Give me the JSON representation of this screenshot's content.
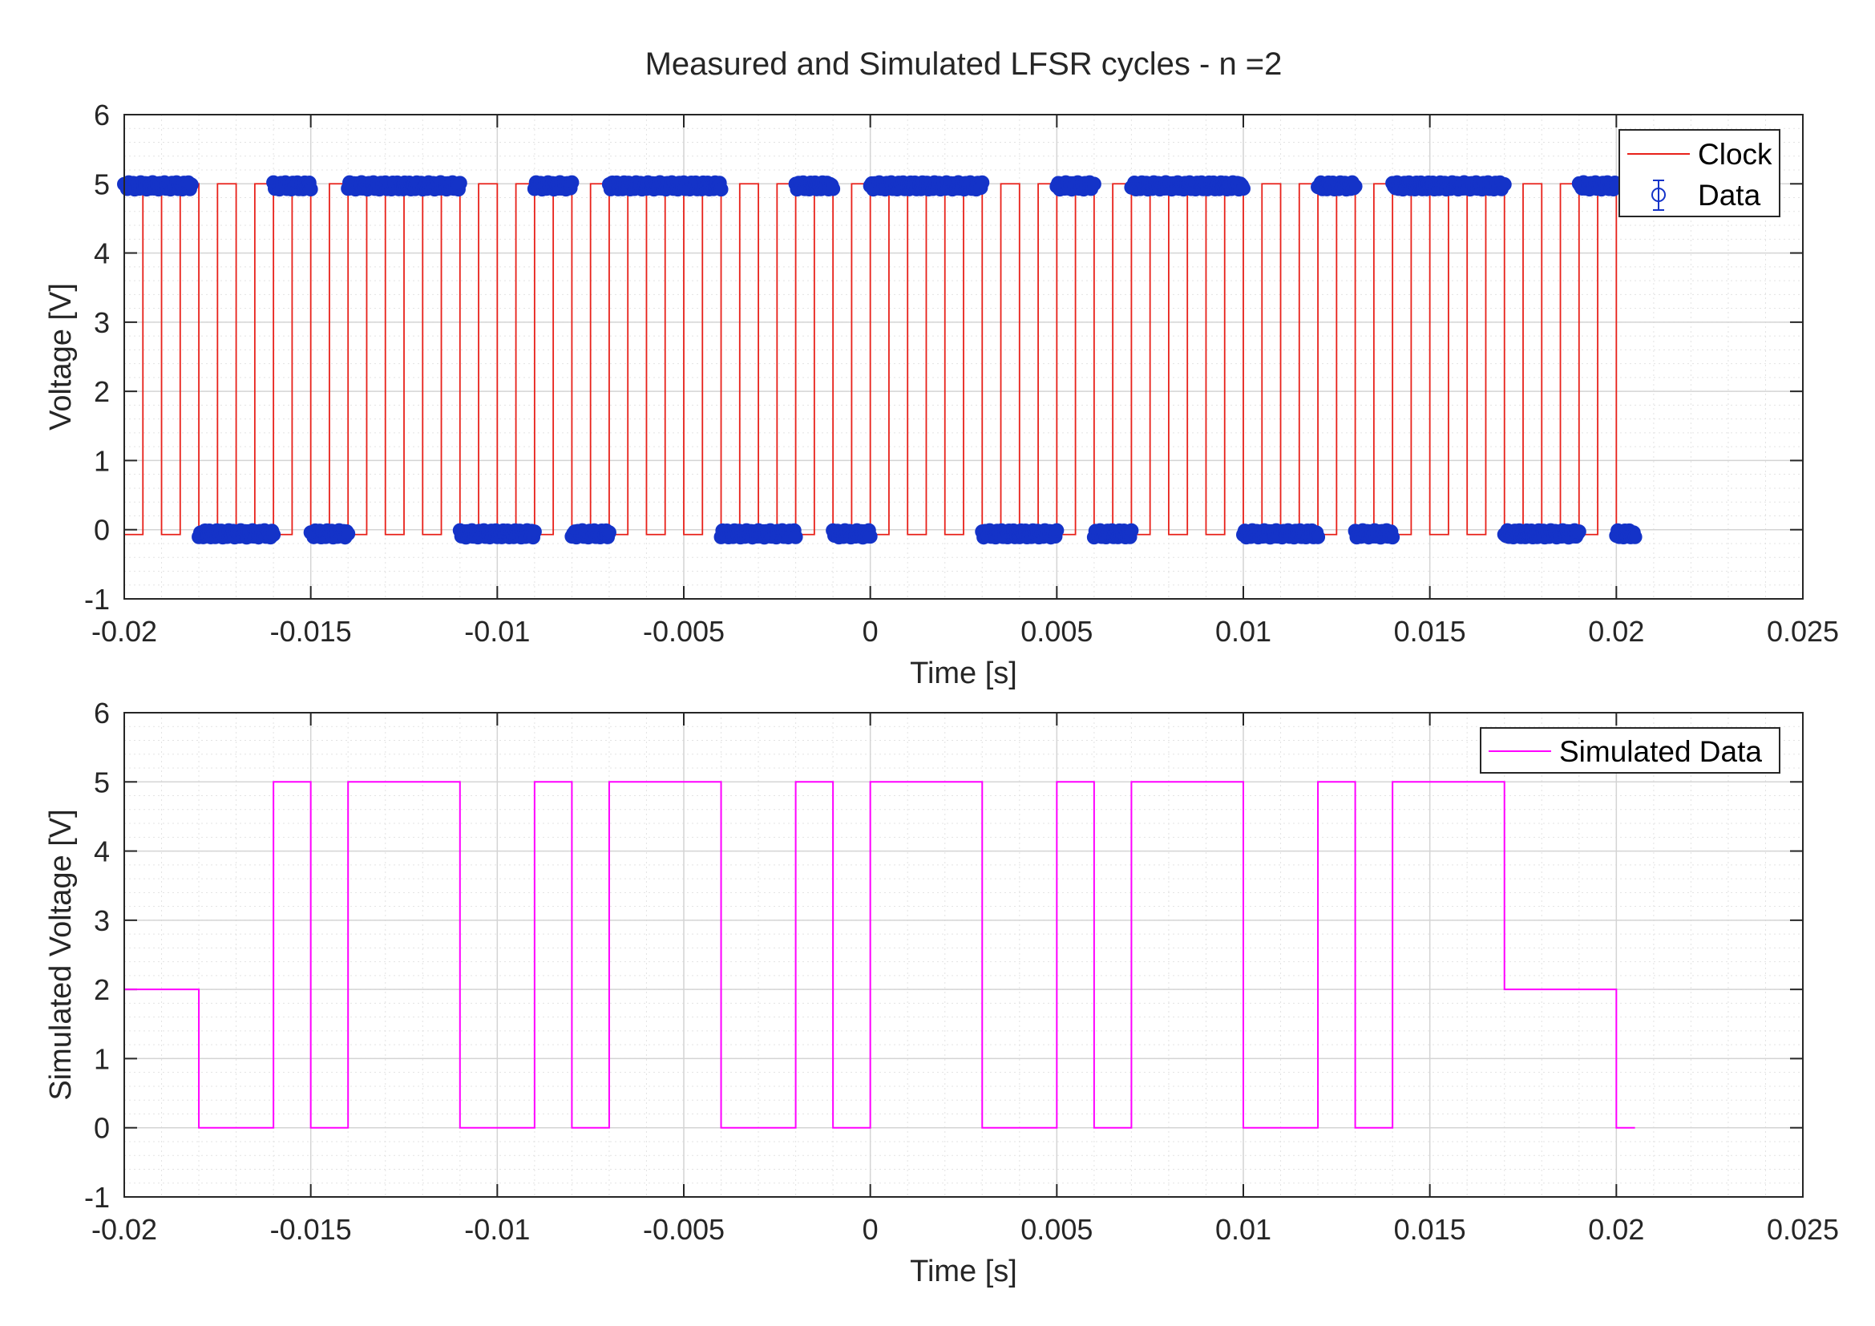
{
  "chart_data": [
    {
      "type": "line",
      "title": "Measured and Simulated LFSR cycles - n =2",
      "xlabel": "Time [s]",
      "ylabel": "Voltage [V]",
      "xlim": [
        -0.02,
        0.025
      ],
      "ylim": [
        -1,
        6
      ],
      "xticks": [
        "-0.02",
        "-0.015",
        "-0.01",
        "-0.005",
        "0",
        "0.005",
        "0.01",
        "0.015",
        "0.02",
        "0.025"
      ],
      "yticks": [
        "-1",
        "0",
        "1",
        "2",
        "3",
        "4",
        "5",
        "6"
      ],
      "grid": true,
      "minor_grid": true,
      "legend": {
        "placement": "top-right",
        "entries": [
          "Clock",
          "Data"
        ]
      },
      "colors": {
        "clock": "#e8211a",
        "data": "#1433c8"
      },
      "series": [
        {
          "name": "Clock",
          "kind": "square-wave",
          "period": 0.001,
          "first_rise": -0.0195,
          "last_fall": 0.0201,
          "high_level": 5.0,
          "low_level": -0.07,
          "duty_cycle": 0.5
        },
        {
          "name": "Data",
          "kind": "samples-with-errorbars",
          "error": 0.05,
          "segments": [
            {
              "x0": -0.02,
              "x1": -0.0182,
              "y": 4.97
            },
            {
              "x0": -0.018,
              "x1": -0.016,
              "y": -0.06
            },
            {
              "x0": -0.016,
              "x1": -0.015,
              "y": 4.97
            },
            {
              "x0": -0.015,
              "x1": -0.014,
              "y": -0.06
            },
            {
              "x0": -0.014,
              "x1": -0.011,
              "y": 4.97
            },
            {
              "x0": -0.011,
              "x1": -0.009,
              "y": -0.06
            },
            {
              "x0": -0.009,
              "x1": -0.008,
              "y": 4.97
            },
            {
              "x0": -0.008,
              "x1": -0.007,
              "y": -0.06
            },
            {
              "x0": -0.007,
              "x1": -0.004,
              "y": 4.97
            },
            {
              "x0": -0.004,
              "x1": -0.002,
              "y": -0.06
            },
            {
              "x0": -0.002,
              "x1": -0.001,
              "y": 4.97
            },
            {
              "x0": -0.001,
              "x1": 0.0,
              "y": -0.06
            },
            {
              "x0": 0.0,
              "x1": 0.003,
              "y": 4.97
            },
            {
              "x0": 0.003,
              "x1": 0.005,
              "y": -0.06
            },
            {
              "x0": 0.005,
              "x1": 0.006,
              "y": 4.97
            },
            {
              "x0": 0.006,
              "x1": 0.007,
              "y": -0.06
            },
            {
              "x0": 0.007,
              "x1": 0.01,
              "y": 4.97
            },
            {
              "x0": 0.01,
              "x1": 0.012,
              "y": -0.06
            },
            {
              "x0": 0.012,
              "x1": 0.013,
              "y": 4.97
            },
            {
              "x0": 0.013,
              "x1": 0.014,
              "y": -0.06
            },
            {
              "x0": 0.014,
              "x1": 0.017,
              "y": 4.97
            },
            {
              "x0": 0.017,
              "x1": 0.019,
              "y": -0.06
            },
            {
              "x0": 0.019,
              "x1": 0.02,
              "y": 4.97
            },
            {
              "x0": 0.02,
              "x1": 0.0205,
              "y": -0.06
            }
          ]
        }
      ]
    },
    {
      "type": "line",
      "title": "",
      "xlabel": "Time [s]",
      "ylabel": "Simulated Voltage [V]",
      "xlim": [
        -0.02,
        0.025
      ],
      "ylim": [
        -1,
        6
      ],
      "xticks": [
        "-0.02",
        "-0.015",
        "-0.01",
        "-0.005",
        "0",
        "0.005",
        "0.01",
        "0.015",
        "0.02",
        "0.025"
      ],
      "yticks": [
        "-1",
        "0",
        "1",
        "2",
        "3",
        "4",
        "5",
        "6"
      ],
      "grid": true,
      "minor_grid": true,
      "legend": {
        "placement": "top-right",
        "entries": [
          "Simulated Data"
        ]
      },
      "colors": {
        "simulated": "#ff00ff"
      },
      "series": [
        {
          "name": "Simulated Data",
          "kind": "step",
          "points": [
            [
              -0.02,
              2
            ],
            [
              -0.018,
              2
            ],
            [
              -0.018,
              0
            ],
            [
              -0.016,
              0
            ],
            [
              -0.016,
              5
            ],
            [
              -0.015,
              5
            ],
            [
              -0.015,
              0
            ],
            [
              -0.014,
              0
            ],
            [
              -0.014,
              5
            ],
            [
              -0.011,
              5
            ],
            [
              -0.011,
              0
            ],
            [
              -0.009,
              0
            ],
            [
              -0.009,
              5
            ],
            [
              -0.008,
              5
            ],
            [
              -0.008,
              0
            ],
            [
              -0.007,
              0
            ],
            [
              -0.007,
              5
            ],
            [
              -0.004,
              5
            ],
            [
              -0.004,
              0
            ],
            [
              -0.002,
              0
            ],
            [
              -0.002,
              5
            ],
            [
              -0.001,
              5
            ],
            [
              -0.001,
              0
            ],
            [
              0.0,
              0
            ],
            [
              0.0,
              5
            ],
            [
              0.003,
              5
            ],
            [
              0.003,
              0
            ],
            [
              0.005,
              0
            ],
            [
              0.005,
              5
            ],
            [
              0.006,
              5
            ],
            [
              0.006,
              0
            ],
            [
              0.007,
              0
            ],
            [
              0.007,
              5
            ],
            [
              0.01,
              5
            ],
            [
              0.01,
              0
            ],
            [
              0.012,
              0
            ],
            [
              0.012,
              5
            ],
            [
              0.013,
              5
            ],
            [
              0.013,
              0
            ],
            [
              0.014,
              0
            ],
            [
              0.014,
              5
            ],
            [
              0.017,
              5
            ],
            [
              0.017,
              2
            ],
            [
              0.02,
              2
            ],
            [
              0.02,
              0
            ],
            [
              0.0205,
              0
            ]
          ]
        }
      ]
    }
  ]
}
